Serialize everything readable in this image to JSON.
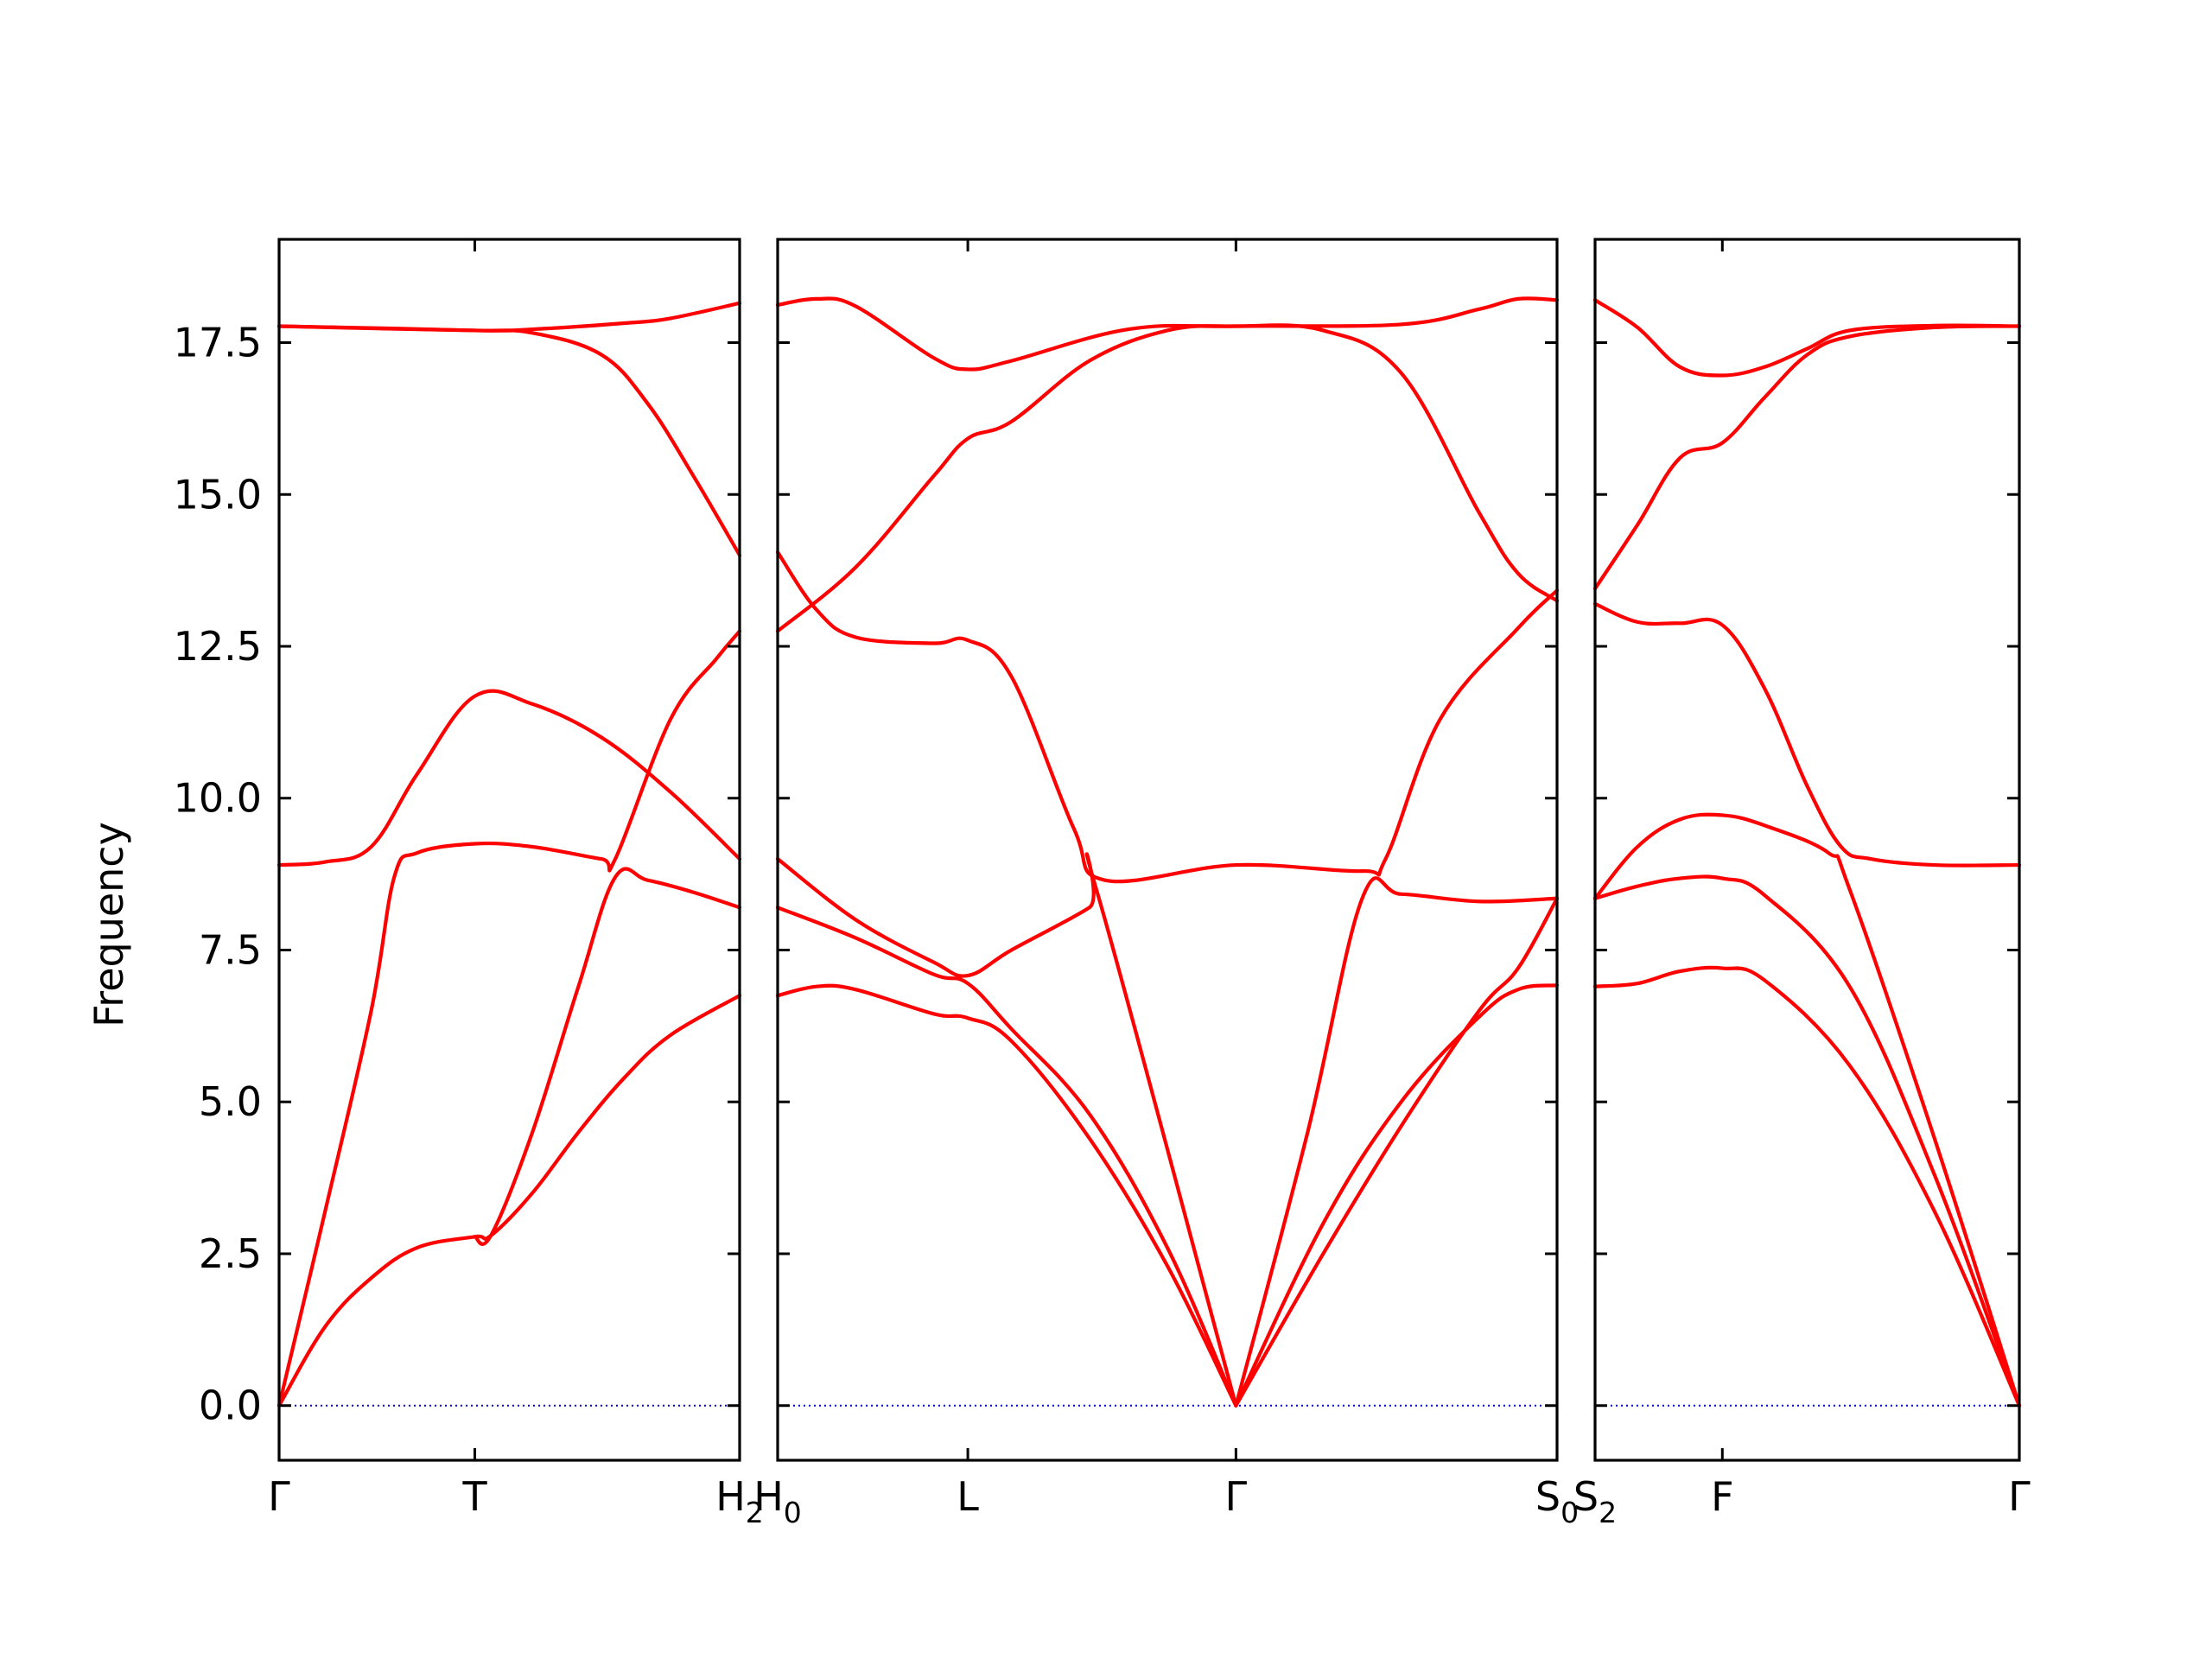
{
  "chart_data": {
    "type": "line",
    "ylabel": "Frequency",
    "xlabel": "",
    "title": "",
    "ylim": [
      -0.9,
      19.2
    ],
    "yticks": [
      0.0,
      2.5,
      5.0,
      7.5,
      10.0,
      12.5,
      15.0,
      17.5
    ],
    "ytick_labels": [
      "0.0",
      "2.5",
      "5.0",
      "7.5",
      "10.0",
      "12.5",
      "15.0",
      "17.5"
    ],
    "line_color": "#ff0000",
    "zero_line_color": "#0000cc",
    "panels": [
      {
        "x_range": [
          0,
          1
        ],
        "ticks": [
          {
            "x": 0,
            "label": "Γ",
            "sub": ""
          },
          {
            "x": 0.425,
            "label": "T",
            "sub": ""
          },
          {
            "x": 1,
            "label": "H",
            "sub": "2"
          }
        ],
        "bands": [
          [
            [
              0,
              0
            ],
            [
              0.1,
              1.3
            ],
            [
              0.2,
              2.1
            ],
            [
              0.3,
              2.6
            ],
            [
              0.425,
              2.78
            ],
            [
              0.46,
              2.8
            ],
            [
              0.55,
              3.5
            ],
            [
              0.65,
              4.5
            ],
            [
              0.75,
              5.4
            ],
            [
              0.85,
              6.1
            ],
            [
              1,
              6.75
            ]
          ],
          [
            [
              0,
              0
            ],
            [
              0.1,
              3.2
            ],
            [
              0.2,
              6.5
            ],
            [
              0.25,
              8.7
            ],
            [
              0.3,
              9.1
            ],
            [
              0.425,
              9.25
            ],
            [
              0.55,
              9.2
            ],
            [
              0.7,
              9.0
            ],
            [
              0.73,
              9.0
            ],
            [
              0.85,
              11.3
            ],
            [
              0.95,
              12.3
            ],
            [
              1,
              12.75
            ]
          ],
          [
            [
              0,
              8.9
            ],
            [
              0.1,
              8.95
            ],
            [
              0.2,
              9.2
            ],
            [
              0.3,
              10.4
            ],
            [
              0.425,
              11.68
            ],
            [
              0.55,
              11.55
            ],
            [
              0.7,
              11.0
            ],
            [
              0.85,
              10.1
            ],
            [
              1,
              9.0
            ]
          ],
          [
            [
              0.425,
              2.78
            ],
            [
              0.46,
              2.8
            ],
            [
              0.55,
              4.5
            ],
            [
              0.65,
              6.9
            ],
            [
              0.73,
              8.7
            ],
            [
              0.8,
              8.65
            ],
            [
              0.9,
              8.45
            ],
            [
              1,
              8.2
            ]
          ],
          [
            [
              0,
              17.77
            ],
            [
              0.2,
              17.74
            ],
            [
              0.425,
              17.7
            ],
            [
              0.55,
              17.66
            ],
            [
              0.7,
              17.3
            ],
            [
              0.8,
              16.5
            ],
            [
              0.9,
              15.3
            ],
            [
              1,
              14.0
            ]
          ],
          [
            [
              0,
              17.77
            ],
            [
              0.425,
              17.7
            ],
            [
              0.55,
              17.72
            ],
            [
              0.75,
              17.82
            ],
            [
              0.85,
              17.9
            ],
            [
              1,
              18.15
            ]
          ]
        ]
      },
      {
        "x_range": [
          0,
          1
        ],
        "ticks": [
          {
            "x": 0,
            "label": "H",
            "sub": "0"
          },
          {
            "x": 0.244,
            "label": "L",
            "sub": ""
          },
          {
            "x": 0.588,
            "label": "Γ",
            "sub": ""
          },
          {
            "x": 1,
            "label": "S",
            "sub": "0"
          }
        ],
        "bands": [
          [
            [
              0,
              6.75
            ],
            [
              0.05,
              6.9
            ],
            [
              0.1,
              6.85
            ],
            [
              0.2,
              6.45
            ],
            [
              0.244,
              6.38
            ],
            [
              0.3,
              6.0
            ],
            [
              0.4,
              4.4
            ],
            [
              0.5,
              2.3
            ],
            [
              0.588,
              0
            ]
          ],
          [
            [
              0,
              8.2
            ],
            [
              0.1,
              7.7
            ],
            [
              0.2,
              7.1
            ],
            [
              0.244,
              6.95
            ],
            [
              0.3,
              6.2
            ],
            [
              0.4,
              4.8
            ],
            [
              0.5,
              2.6
            ],
            [
              0.588,
              0
            ]
          ],
          [
            [
              0,
              9.0
            ],
            [
              0.1,
              8.0
            ],
            [
              0.2,
              7.3
            ],
            [
              0.244,
              7.08
            ],
            [
              0.3,
              7.5
            ],
            [
              0.4,
              8.2
            ],
            [
              0.41,
              8.45
            ],
            [
              0.588,
              0
            ]
          ],
          [
            [
              0,
              14.05
            ],
            [
              0.05,
              13.1
            ],
            [
              0.1,
              12.65
            ],
            [
              0.2,
              12.55
            ],
            [
              0.244,
              12.6
            ],
            [
              0.3,
              12.0
            ],
            [
              0.38,
              9.5
            ],
            [
              0.42,
              8.65
            ],
            [
              0.588,
              8.9
            ],
            [
              0.75,
              8.8
            ],
            [
              0.78,
              9.0
            ],
            [
              0.85,
              11.3
            ],
            [
              0.95,
              12.8
            ],
            [
              1,
              13.42
            ]
          ],
          [
            [
              0,
              12.75
            ],
            [
              0.1,
              13.8
            ],
            [
              0.2,
              15.3
            ],
            [
              0.244,
              15.92
            ],
            [
              0.3,
              16.2
            ],
            [
              0.4,
              17.2
            ],
            [
              0.5,
              17.7
            ],
            [
              0.588,
              17.77
            ],
            [
              0.7,
              17.7
            ],
            [
              0.8,
              17.0
            ],
            [
              0.9,
              14.7
            ],
            [
              0.95,
              13.7
            ],
            [
              1,
              13.25
            ]
          ],
          [
            [
              0,
              18.12
            ],
            [
              0.05,
              18.22
            ],
            [
              0.1,
              18.1
            ],
            [
              0.2,
              17.25
            ],
            [
              0.244,
              17.06
            ],
            [
              0.3,
              17.2
            ],
            [
              0.45,
              17.72
            ],
            [
              0.588,
              17.77
            ],
            [
              0.8,
              17.8
            ],
            [
              0.9,
              18.05
            ],
            [
              0.95,
              18.22
            ],
            [
              1,
              18.2
            ]
          ],
          [
            [
              0.588,
              0
            ],
            [
              0.68,
              4.5
            ],
            [
              0.75,
              8.35
            ],
            [
              0.8,
              8.42
            ],
            [
              0.9,
              8.3
            ],
            [
              1,
              8.35
            ]
          ],
          [
            [
              0.588,
              0
            ],
            [
              0.7,
              3.0
            ],
            [
              0.8,
              5.0
            ],
            [
              0.9,
              6.4
            ],
            [
              0.95,
              6.85
            ],
            [
              1,
              6.92
            ]
          ],
          [
            [
              0.588,
              0
            ],
            [
              0.7,
              2.5
            ],
            [
              0.8,
              4.6
            ],
            [
              0.9,
              6.5
            ],
            [
              0.95,
              7.2
            ],
            [
              1,
              8.35
            ]
          ]
        ]
      },
      {
        "x_range": [
          0,
          1
        ],
        "ticks": [
          {
            "x": 0,
            "label": "S",
            "sub": "2"
          },
          {
            "x": 0.3,
            "label": "F",
            "sub": ""
          },
          {
            "x": 1,
            "label": "Γ",
            "sub": ""
          }
        ],
        "bands": [
          [
            [
              0,
              6.9
            ],
            [
              0.1,
              6.95
            ],
            [
              0.2,
              7.15
            ],
            [
              0.3,
              7.2
            ],
            [
              0.4,
              7.0
            ],
            [
              0.6,
              5.6
            ],
            [
              0.8,
              3.2
            ],
            [
              1,
              0
            ]
          ],
          [
            [
              0,
              8.35
            ],
            [
              0.1,
              8.55
            ],
            [
              0.2,
              8.68
            ],
            [
              0.3,
              8.68
            ],
            [
              0.4,
              8.4
            ],
            [
              0.6,
              6.9
            ],
            [
              0.8,
              3.8
            ],
            [
              1,
              0
            ]
          ],
          [
            [
              0,
              8.35
            ],
            [
              0.1,
              9.2
            ],
            [
              0.2,
              9.65
            ],
            [
              0.3,
              9.72
            ],
            [
              0.4,
              9.55
            ],
            [
              0.55,
              9.1
            ],
            [
              0.6,
              8.5
            ],
            [
              0.8,
              4.4
            ],
            [
              1,
              0
            ]
          ],
          [
            [
              0,
              13.2
            ],
            [
              0.1,
              12.9
            ],
            [
              0.2,
              12.88
            ],
            [
              0.3,
              12.85
            ],
            [
              0.4,
              11.8
            ],
            [
              0.5,
              10.2
            ],
            [
              0.58,
              9.2
            ],
            [
              0.65,
              9.0
            ],
            [
              0.8,
              8.9
            ],
            [
              1,
              8.9
            ]
          ],
          [
            [
              0,
              13.45
            ],
            [
              0.1,
              14.5
            ],
            [
              0.2,
              15.6
            ],
            [
              0.3,
              15.85
            ],
            [
              0.4,
              16.6
            ],
            [
              0.5,
              17.3
            ],
            [
              0.6,
              17.6
            ],
            [
              0.8,
              17.75
            ],
            [
              1,
              17.77
            ]
          ],
          [
            [
              0,
              18.2
            ],
            [
              0.1,
              17.75
            ],
            [
              0.2,
              17.1
            ],
            [
              0.3,
              16.96
            ],
            [
              0.4,
              17.1
            ],
            [
              0.5,
              17.4
            ],
            [
              0.6,
              17.7
            ],
            [
              0.8,
              17.78
            ],
            [
              1,
              17.77
            ]
          ]
        ]
      }
    ]
  }
}
